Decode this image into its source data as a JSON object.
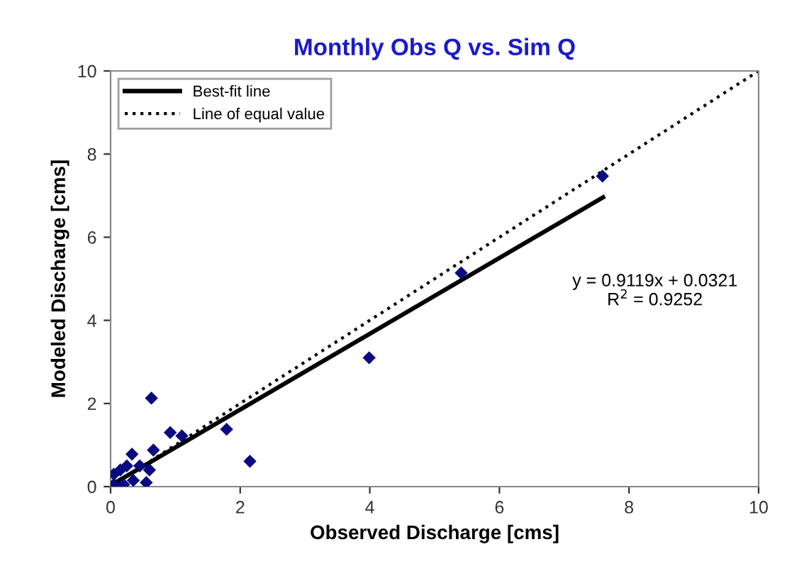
{
  "chart_data": {
    "type": "scatter",
    "title": "Monthly Obs Q vs. Sim Q",
    "xlabel": "Observed Discharge [cms]",
    "ylabel": "Modeled Discharge [cms]",
    "xlim": [
      0,
      10
    ],
    "ylim": [
      0,
      10
    ],
    "xticks": [
      0,
      2,
      4,
      6,
      8,
      10
    ],
    "yticks": [
      0,
      2,
      4,
      6,
      8,
      10
    ],
    "grid": false,
    "legend": "top left",
    "annotations": [
      "y = 0.9119x + 0.0321\nR$^{2}$ = 0.9252"
    ],
    "series": [
      {
        "color": "#0a0a80",
        "marker": "diamond",
        "x": [
          7.59,
          5.41,
          3.99,
          2.15,
          1.79,
          0.63,
          0.92,
          1.1,
          0.66,
          0.33,
          0.05,
          0.15,
          0.25,
          0.45,
          0.55,
          0.35,
          0.05,
          0.6,
          0.2
        ],
        "values": [
          7.47,
          5.14,
          3.1,
          0.61,
          1.38,
          2.13,
          1.3,
          1.22,
          0.88,
          0.78,
          0.05,
          0.4,
          0.5,
          0.5,
          0.1,
          0.15,
          0.3,
          0.4,
          0.05
        ]
      },
      {
        "type": "line",
        "name": "Best-fit line",
        "color": "#000000",
        "line_style": "solid",
        "x": [
          0,
          7.6
        ],
        "values": [
          0.03,
          6.96
        ]
      },
      {
        "type": "line",
        "name": "Line of equal value",
        "color": "#000000",
        "line_style": "dotted",
        "x": [
          0,
          10
        ],
        "values": [
          0,
          10
        ]
      }
    ]
  }
}
